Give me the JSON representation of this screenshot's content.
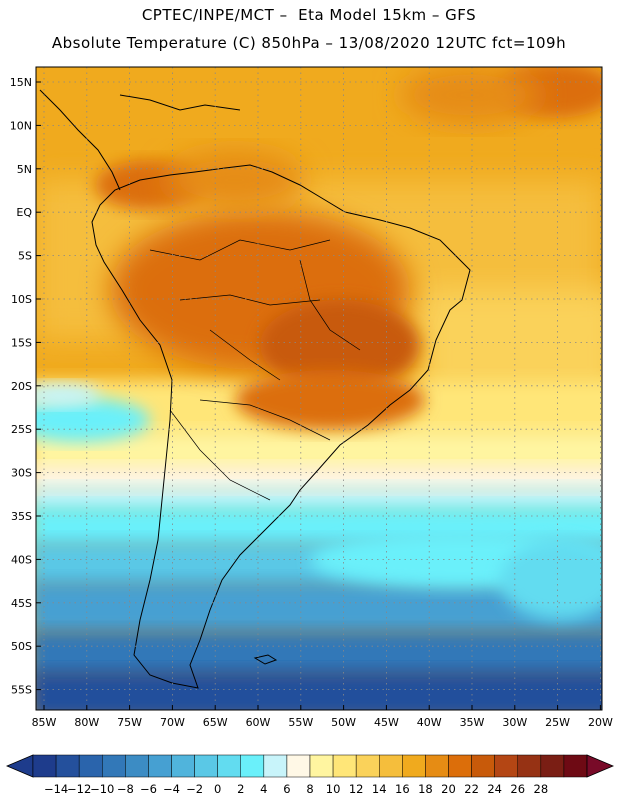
{
  "header": {
    "line1": "CPTEC/INPE/MCT –  Eta Model 15km – GFS",
    "line2": "Absolute Temperature (C) 850hPa – 13/08/2020 12UTC fct=109h"
  },
  "axes": {
    "lat_labels": [
      "15N",
      "10N",
      "5N",
      "EQ",
      "5S",
      "10S",
      "15S",
      "20S",
      "25S",
      "30S",
      "35S",
      "40S",
      "45S",
      "50S",
      "55S"
    ],
    "lon_labels": [
      "85W",
      "80W",
      "75W",
      "70W",
      "65W",
      "60W",
      "55W",
      "50W",
      "45W",
      "40W",
      "35W",
      "30W",
      "25W",
      "20W"
    ]
  },
  "colorbar": {
    "labels": [
      "-14",
      "-12",
      "-10",
      "-8",
      "-6",
      "-4",
      "-2",
      "0",
      "2",
      "4",
      "6",
      "8",
      "10",
      "12",
      "14",
      "16",
      "18",
      "20",
      "22",
      "24",
      "26",
      "28"
    ],
    "colors": [
      "#1e3c8c",
      "#24509c",
      "#2a64ac",
      "#3278b8",
      "#3c8cc4",
      "#46a0d2",
      "#50b4dc",
      "#5ac8e6",
      "#62dcf0",
      "#6af0fa",
      "#c8f4fa",
      "#fff8e6",
      "#fff5a0",
      "#ffe678",
      "#fad25a",
      "#f5be3c",
      "#f0aa1e",
      "#e68c14",
      "#dc6e0a",
      "#c85a0a",
      "#b44614",
      "#963214",
      "#7a1e14",
      "#6e0a14"
    ],
    "under_color": "#1e3c8c",
    "over_color": "#780a28"
  }
}
